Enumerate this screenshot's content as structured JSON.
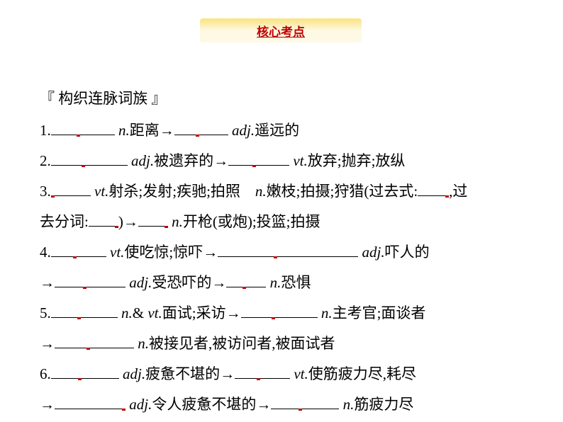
{
  "header": {
    "label": "核心考点"
  },
  "section_title": "『 构织连脉词族 』",
  "items": [
    {
      "num": "1.",
      "parts": [
        {
          "type": "blank",
          "width": 90,
          "red": "mid"
        },
        {
          "type": "text",
          "val": " "
        },
        {
          "type": "italic",
          "val": "n."
        },
        {
          "type": "text",
          "val": "距离→"
        },
        {
          "type": "blank",
          "width": 76,
          "red": "mid"
        },
        {
          "type": "text",
          "val": " "
        },
        {
          "type": "italic",
          "val": "adj."
        },
        {
          "type": "text",
          "val": "遥远的"
        }
      ]
    },
    {
      "num": "2.",
      "parts": [
        {
          "type": "blank",
          "width": 108,
          "red": "mid"
        },
        {
          "type": "text",
          "val": " "
        },
        {
          "type": "italic",
          "val": "adj."
        },
        {
          "type": "text",
          "val": "被遗弃的→"
        },
        {
          "type": "blank",
          "width": 86,
          "red": "mid"
        },
        {
          "type": "text",
          "val": " "
        },
        {
          "type": "italic",
          "val": "vt."
        },
        {
          "type": "text",
          "val": "放弃;抛弃;放纵"
        }
      ]
    },
    {
      "num": "3.",
      "parts": [
        {
          "type": "blank",
          "width": 56,
          "red": "start"
        },
        {
          "type": "text",
          "val": " "
        },
        {
          "type": "italic",
          "val": "vt."
        },
        {
          "type": "text",
          "val": "射杀;发射;疾驰;拍照　"
        },
        {
          "type": "italic",
          "val": "n."
        },
        {
          "type": "text",
          "val": "嫩枝;拍摄;狩猎(过去式:"
        },
        {
          "type": "blank",
          "width": 44,
          "red": "end"
        },
        {
          "type": "text",
          "val": ",过"
        },
        {
          "type": "br"
        },
        {
          "type": "text",
          "val": "去分词:"
        },
        {
          "type": "blank",
          "width": 42,
          "red": "end"
        },
        {
          "type": "text",
          "val": ")→"
        },
        {
          "type": "blank",
          "width": 42,
          "red": "end"
        },
        {
          "type": "text",
          "val": " "
        },
        {
          "type": "italic",
          "val": "n."
        },
        {
          "type": "text",
          "val": "开枪(或炮);投篮;拍摄"
        }
      ]
    },
    {
      "num": "4.",
      "parts": [
        {
          "type": "blank",
          "width": 78,
          "red": "mid"
        },
        {
          "type": "text",
          "val": " "
        },
        {
          "type": "italic",
          "val": "vt."
        },
        {
          "type": "text",
          "val": "使吃惊;惊吓→"
        },
        {
          "type": "blank",
          "width": 198,
          "red": "mid"
        },
        {
          "type": "text",
          "val": " "
        },
        {
          "type": "italic",
          "val": "adj."
        },
        {
          "type": "text",
          "val": "吓人的"
        },
        {
          "type": "br"
        },
        {
          "type": "text",
          "val": "→"
        },
        {
          "type": "blank",
          "width": 100,
          "red": "mid"
        },
        {
          "type": "text",
          "val": " "
        },
        {
          "type": "italic",
          "val": "adj."
        },
        {
          "type": "text",
          "val": "受恐吓的→"
        },
        {
          "type": "blank",
          "width": 56,
          "red": "mid"
        },
        {
          "type": "text",
          "val": " "
        },
        {
          "type": "italic",
          "val": "n."
        },
        {
          "type": "text",
          "val": "恐惧"
        }
      ]
    },
    {
      "num": "5.",
      "parts": [
        {
          "type": "blank",
          "width": 94,
          "red": "mid"
        },
        {
          "type": "text",
          "val": " "
        },
        {
          "type": "italic",
          "val": "n."
        },
        {
          "type": "text",
          "val": "& "
        },
        {
          "type": "italic",
          "val": "vt."
        },
        {
          "type": "text",
          "val": "面试;采访→"
        },
        {
          "type": "blank",
          "width": 108,
          "red": "mid"
        },
        {
          "type": "text",
          "val": " "
        },
        {
          "type": "italic",
          "val": "n."
        },
        {
          "type": "text",
          "val": "主考官;面谈者"
        },
        {
          "type": "br"
        },
        {
          "type": "text",
          "val": "→"
        },
        {
          "type": "blank",
          "width": 112,
          "red": "mid"
        },
        {
          "type": "text",
          "val": " "
        },
        {
          "type": "italic",
          "val": "n."
        },
        {
          "type": "text",
          "val": "被接见者,被访问者,被面试者"
        }
      ]
    },
    {
      "num": "6.",
      "parts": [
        {
          "type": "blank",
          "width": 96,
          "red": "mid"
        },
        {
          "type": "text",
          "val": " "
        },
        {
          "type": "italic",
          "val": "adj."
        },
        {
          "type": "text",
          "val": "疲惫不堪的→"
        },
        {
          "type": "blank",
          "width": 78,
          "red": "mid"
        },
        {
          "type": "text",
          "val": " "
        },
        {
          "type": "italic",
          "val": "vt."
        },
        {
          "type": "text",
          "val": "使筋疲力尽,耗尽"
        },
        {
          "type": "br"
        },
        {
          "type": "text",
          "val": "→"
        },
        {
          "type": "blank",
          "width": 100,
          "red": "end"
        },
        {
          "type": "text",
          "val": " "
        },
        {
          "type": "italic",
          "val": "adj."
        },
        {
          "type": "text",
          "val": "令人疲惫不堪的→"
        },
        {
          "type": "blank",
          "width": 96,
          "red": "mid"
        },
        {
          "type": "text",
          "val": " "
        },
        {
          "type": "italic",
          "val": "n."
        },
        {
          "type": "text",
          "val": "筋疲力尽"
        }
      ]
    }
  ]
}
